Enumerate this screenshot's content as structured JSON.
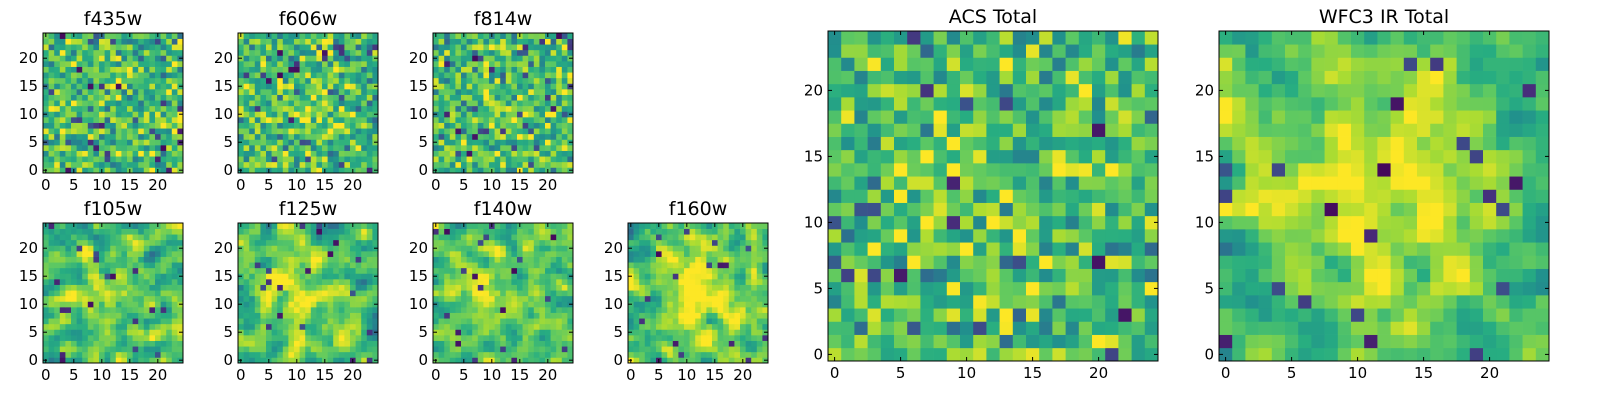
{
  "chart_data": [
    {
      "type": "heatmap",
      "title": "f435w",
      "grid_size": 25,
      "xlim": [
        -0.5,
        24.5
      ],
      "ylim": [
        -0.5,
        24.5
      ],
      "xticks": [
        0,
        5,
        10,
        15,
        20
      ],
      "yticks": [
        0,
        5,
        10,
        15,
        20
      ],
      "xtick_labels": [
        "0",
        "5",
        "10",
        "15",
        "20"
      ],
      "ytick_labels": [
        "0",
        "5",
        "10",
        "15",
        "20"
      ],
      "colormap": "viridis",
      "texture": "noisy",
      "central_excess": 0.05
    },
    {
      "type": "heatmap",
      "title": "f606w",
      "grid_size": 25,
      "xlim": [
        -0.5,
        24.5
      ],
      "ylim": [
        -0.5,
        24.5
      ],
      "xticks": [
        0,
        5,
        10,
        15,
        20
      ],
      "yticks": [
        0,
        5,
        10,
        15,
        20
      ],
      "xtick_labels": [
        "0",
        "5",
        "10",
        "15",
        "20"
      ],
      "ytick_labels": [
        "0",
        "5",
        "10",
        "15",
        "20"
      ],
      "colormap": "viridis",
      "texture": "noisy",
      "central_excess": 0.05
    },
    {
      "type": "heatmap",
      "title": "f814w",
      "grid_size": 25,
      "xlim": [
        -0.5,
        24.5
      ],
      "ylim": [
        -0.5,
        24.5
      ],
      "xticks": [
        0,
        5,
        10,
        15,
        20
      ],
      "yticks": [
        0,
        5,
        10,
        15,
        20
      ],
      "xtick_labels": [
        "0",
        "5",
        "10",
        "15",
        "20"
      ],
      "ytick_labels": [
        "0",
        "5",
        "10",
        "15",
        "20"
      ],
      "colormap": "viridis",
      "texture": "noisy",
      "central_excess": 0.05
    },
    {
      "type": "heatmap",
      "title": "f105w",
      "grid_size": 25,
      "xlim": [
        -0.5,
        24.5
      ],
      "ylim": [
        -0.5,
        24.5
      ],
      "xticks": [
        0,
        5,
        10,
        15,
        20
      ],
      "yticks": [
        0,
        5,
        10,
        15,
        20
      ],
      "xtick_labels": [
        "0",
        "5",
        "10",
        "15",
        "20"
      ],
      "ytick_labels": [
        "0",
        "5",
        "10",
        "15",
        "20"
      ],
      "colormap": "viridis",
      "texture": "correlated",
      "central_excess": 0.1
    },
    {
      "type": "heatmap",
      "title": "f125w",
      "grid_size": 25,
      "xlim": [
        -0.5,
        24.5
      ],
      "ylim": [
        -0.5,
        24.5
      ],
      "xticks": [
        0,
        5,
        10,
        15,
        20
      ],
      "yticks": [
        0,
        5,
        10,
        15,
        20
      ],
      "xtick_labels": [
        "0",
        "5",
        "10",
        "15",
        "20"
      ],
      "ytick_labels": [
        "0",
        "5",
        "10",
        "15",
        "20"
      ],
      "colormap": "viridis",
      "texture": "correlated",
      "central_excess": 0.15
    },
    {
      "type": "heatmap",
      "title": "f140w",
      "grid_size": 25,
      "xlim": [
        -0.5,
        24.5
      ],
      "ylim": [
        -0.5,
        24.5
      ],
      "xticks": [
        0,
        5,
        10,
        15,
        20
      ],
      "yticks": [
        0,
        5,
        10,
        15,
        20
      ],
      "xtick_labels": [
        "0",
        "5",
        "10",
        "15",
        "20"
      ],
      "ytick_labels": [
        "0",
        "5",
        "10",
        "15",
        "20"
      ],
      "colormap": "viridis",
      "texture": "correlated",
      "central_excess": 0.2
    },
    {
      "type": "heatmap",
      "title": "f160w",
      "grid_size": 25,
      "xlim": [
        -0.5,
        24.5
      ],
      "ylim": [
        -0.5,
        24.5
      ],
      "xticks": [
        0,
        5,
        10,
        15,
        20
      ],
      "yticks": [
        0,
        5,
        10,
        15,
        20
      ],
      "xtick_labels": [
        "0",
        "5",
        "10",
        "15",
        "20"
      ],
      "ytick_labels": [
        "0",
        "5",
        "10",
        "15",
        "20"
      ],
      "colormap": "viridis",
      "texture": "correlated",
      "central_excess": 0.3
    },
    {
      "type": "heatmap",
      "title": "ACS Total",
      "grid_size": 25,
      "xlim": [
        -0.5,
        24.5
      ],
      "ylim": [
        -0.5,
        24.5
      ],
      "xticks": [
        0,
        5,
        10,
        15,
        20
      ],
      "yticks": [
        0,
        5,
        10,
        15,
        20
      ],
      "xtick_labels": [
        "0",
        "5",
        "10",
        "15",
        "20"
      ],
      "ytick_labels": [
        "0",
        "5",
        "10",
        "15",
        "20"
      ],
      "colormap": "viridis",
      "texture": "noisy",
      "central_excess": 0.1
    },
    {
      "type": "heatmap",
      "title": "WFC3 IR Total",
      "grid_size": 25,
      "xlim": [
        -0.5,
        24.5
      ],
      "ylim": [
        -0.5,
        24.5
      ],
      "xticks": [
        0,
        5,
        10,
        15,
        20
      ],
      "yticks": [
        0,
        5,
        10,
        15,
        20
      ],
      "xtick_labels": [
        "0",
        "5",
        "10",
        "15",
        "20"
      ],
      "ytick_labels": [
        "0",
        "5",
        "10",
        "15",
        "20"
      ],
      "colormap": "viridis",
      "texture": "correlated",
      "central_excess": 0.3
    }
  ]
}
